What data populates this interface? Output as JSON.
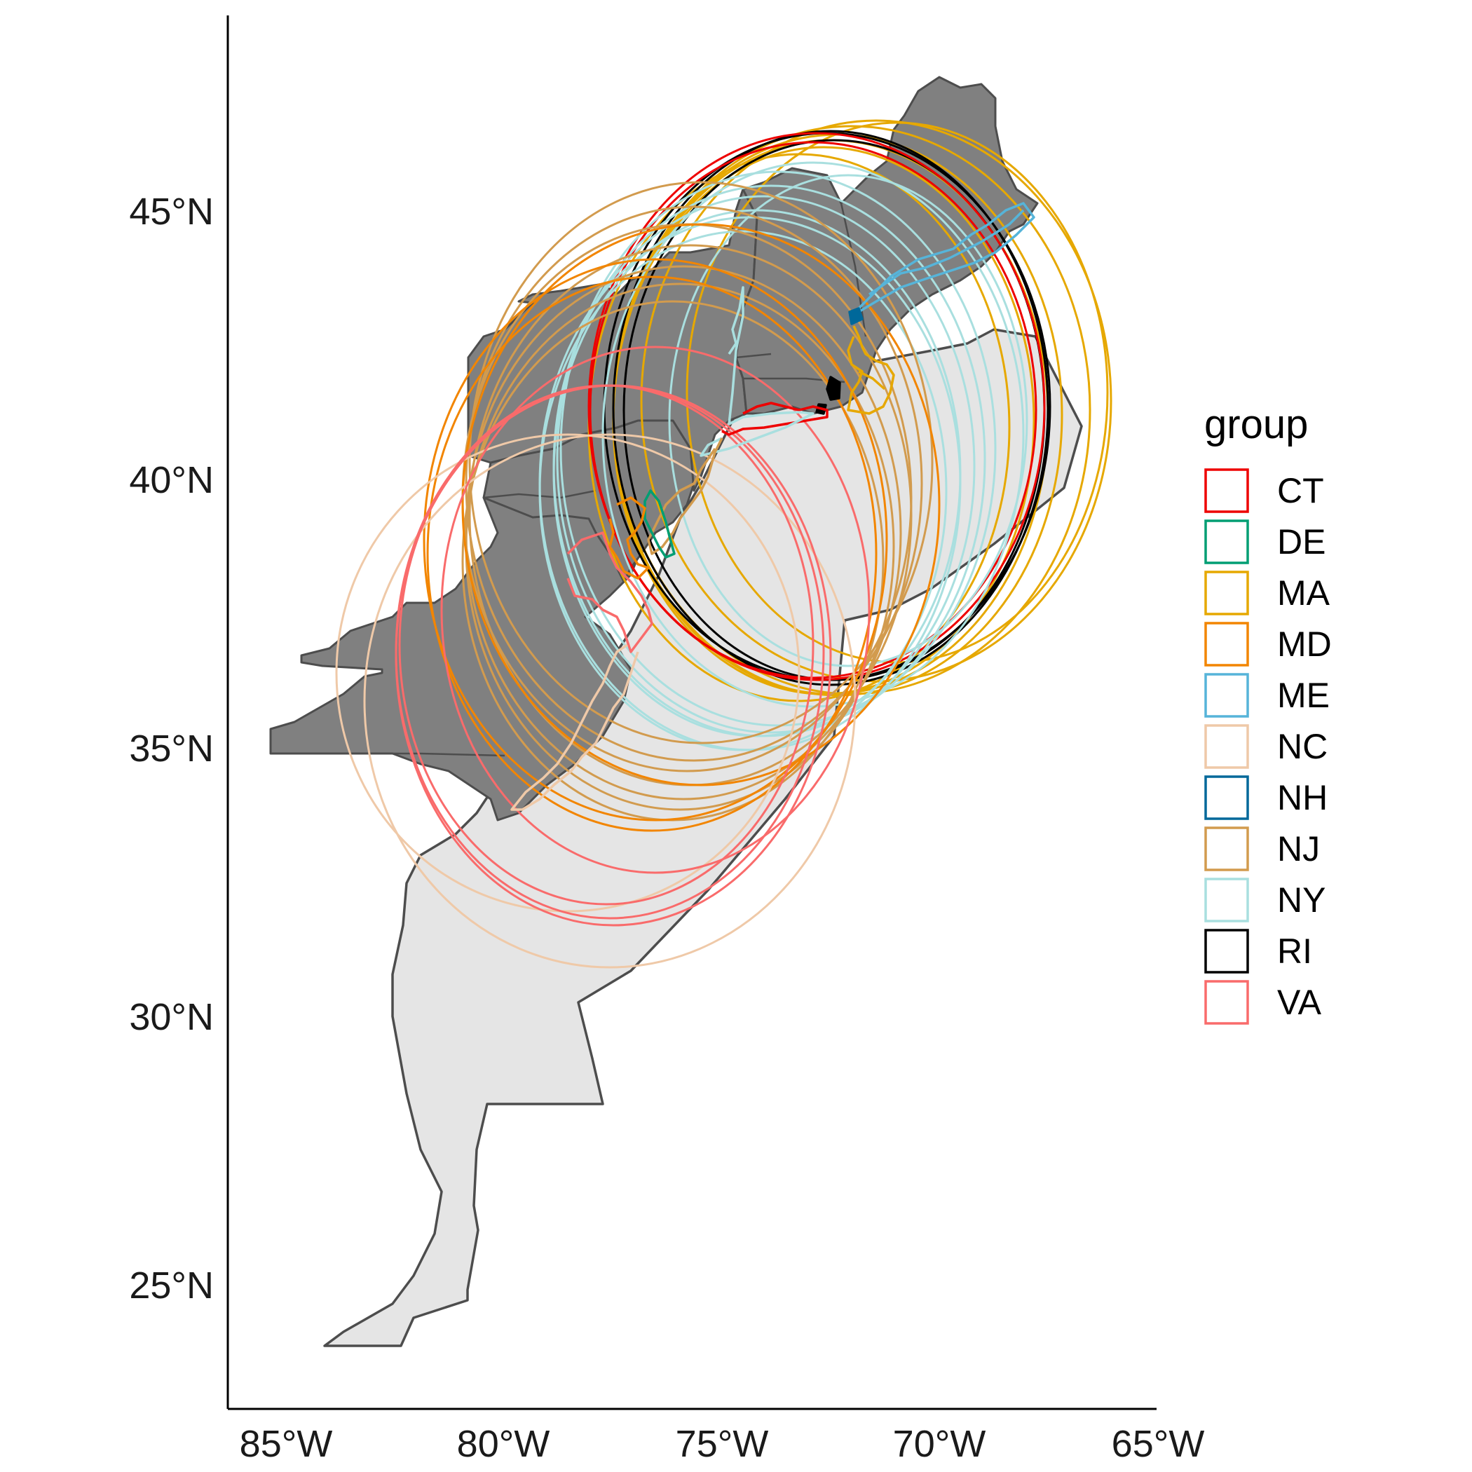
{
  "map": {
    "type": "map",
    "x_axis": {
      "ticks": [
        "85°W",
        "80°W",
        "75°W",
        "70°W",
        "65°W"
      ],
      "values": [
        -85,
        -80,
        -75,
        -70,
        -65
      ],
      "range": [
        -86.4,
        -65
      ]
    },
    "y_axis": {
      "ticks": [
        "25°N",
        "30°N",
        "35°N",
        "40°N",
        "45°N"
      ],
      "values": [
        25,
        30,
        35,
        40,
        45
      ],
      "range": [
        22.7,
        48.8
      ]
    },
    "grid": false,
    "colors": {
      "land_states": "#808080",
      "marine_region": "#e5e5e5",
      "border": "#4d4d4d"
    }
  },
  "legend": {
    "title": "group",
    "placement": "right",
    "items": [
      {
        "label": "CT",
        "color": "#ee0000"
      },
      {
        "label": "DE",
        "color": "#009e73"
      },
      {
        "label": "MA",
        "color": "#e6a800"
      },
      {
        "label": "MD",
        "color": "#f28500"
      },
      {
        "label": "ME",
        "color": "#56b4d9"
      },
      {
        "label": "NC",
        "color": "#efc9a8"
      },
      {
        "label": "NH",
        "color": "#00689a"
      },
      {
        "label": "NJ",
        "color": "#d29b4e"
      },
      {
        "label": "NY",
        "color": "#a9dfdf"
      },
      {
        "label": "RI",
        "color": "#000000"
      },
      {
        "label": "VA",
        "color": "#f96b6b"
      }
    ]
  }
}
